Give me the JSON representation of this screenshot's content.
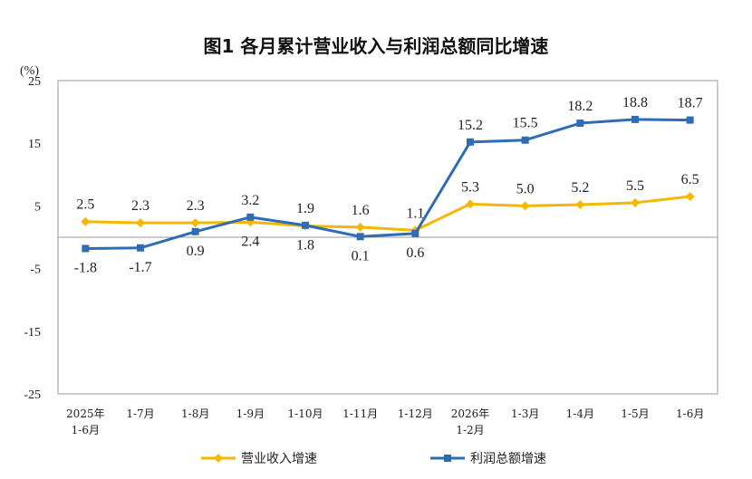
{
  "chart_data": {
    "type": "line",
    "title": "图1  各月累计营业收入与利润总额同比增速",
    "unit_label": "(%)",
    "categories": [
      [
        "2025年",
        "1-6月"
      ],
      [
        "1-7月"
      ],
      [
        "1-8月"
      ],
      [
        "1-9月"
      ],
      [
        "1-10月"
      ],
      [
        "1-11月"
      ],
      [
        "1-12月"
      ],
      [
        "2026年",
        "1-2月"
      ],
      [
        "1-3月"
      ],
      [
        "1-4月"
      ],
      [
        "1-5月"
      ],
      [
        "1-6月"
      ]
    ],
    "ylim": [
      -25,
      25
    ],
    "yticks": [
      25,
      15,
      5,
      -5,
      -15,
      -25
    ],
    "grid": false,
    "legend_position": "bottom",
    "series": [
      {
        "name": "营业收入增速",
        "color": "#F5B800",
        "marker": "diamond",
        "values": [
          2.5,
          2.3,
          2.3,
          2.4,
          1.8,
          1.6,
          1.1,
          5.3,
          5.0,
          5.2,
          5.5,
          6.5
        ],
        "labels": [
          "2.5",
          "2.3",
          "2.3",
          "2.4",
          "1.8",
          "1.6",
          "1.1",
          "5.3",
          "5.0",
          "5.2",
          "5.5",
          "6.5"
        ],
        "label_side": [
          "above",
          "above",
          "above",
          "below",
          "below",
          "above",
          "above",
          "above",
          "above",
          "above",
          "above",
          "above"
        ]
      },
      {
        "name": "利润总额增速",
        "color": "#2E6DB4",
        "marker": "square",
        "values": [
          -1.8,
          -1.7,
          0.9,
          3.2,
          1.9,
          0.1,
          0.6,
          15.2,
          15.5,
          18.2,
          18.8,
          18.7
        ],
        "labels": [
          "-1.8",
          "-1.7",
          "0.9",
          "3.2",
          "1.9",
          "0.1",
          "0.6",
          "15.2",
          "15.5",
          "18.2",
          "18.8",
          "18.7"
        ],
        "label_side": [
          "below",
          "below",
          "below",
          "above",
          "above",
          "below",
          "below",
          "above",
          "above",
          "above",
          "above",
          "above"
        ]
      }
    ]
  }
}
